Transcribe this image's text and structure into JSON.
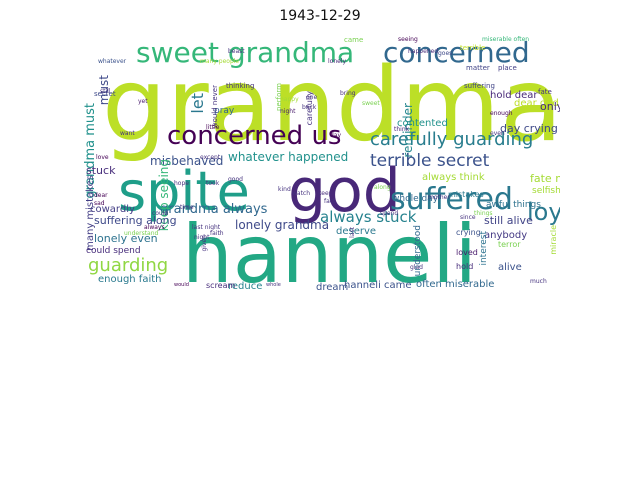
{
  "chart_data": {
    "type": "wordcloud",
    "title": "1943-12-29",
    "words": [
      {
        "text": "grandma",
        "color": "#bcdf27"
      },
      {
        "text": "hanneli",
        "color": "#22a884"
      },
      {
        "text": "god",
        "color": "#482878"
      },
      {
        "text": "spite",
        "color": "#1f9e89"
      },
      {
        "text": "sweet grandma",
        "color": "#35b779"
      },
      {
        "text": "concerned",
        "color": "#31688e"
      },
      {
        "text": "concerned us",
        "color": "#440154"
      },
      {
        "text": "suffered",
        "color": "#2a788e"
      },
      {
        "text": "carefully guarding",
        "color": "#287d8e"
      },
      {
        "text": "terrible secret",
        "color": "#3b528b"
      },
      {
        "text": "always stuck",
        "color": "#26828e"
      },
      {
        "text": "loyal",
        "color": "#2a788e"
      },
      {
        "text": "guarding",
        "color": "#90d743"
      },
      {
        "text": "grandma always",
        "color": "#31688e"
      },
      {
        "text": "lonely grandma",
        "color": "#3e4989"
      },
      {
        "text": "whatever happened",
        "color": "#21918c"
      },
      {
        "text": "misbehaved",
        "color": "#3b528b"
      },
      {
        "text": "keep seeing",
        "color": "#35b779"
      },
      {
        "text": "let",
        "color": "#2a788e"
      },
      {
        "text": "grandma must",
        "color": "#21918c"
      },
      {
        "text": "stuck",
        "color": "#472d7b"
      },
      {
        "text": "reminder",
        "color": "#24868e"
      },
      {
        "text": "hold dear",
        "color": "#482878"
      },
      {
        "text": "dear god",
        "color": "#bddf26"
      },
      {
        "text": "only",
        "color": "#472d7b"
      },
      {
        "text": "day crying",
        "color": "#3e4989"
      },
      {
        "text": "fate might",
        "color": "#a5db36"
      },
      {
        "text": "always think",
        "color": "#a5db36"
      },
      {
        "text": "contented",
        "color": "#21918c"
      },
      {
        "text": "many mistakes",
        "color": "#433e85"
      },
      {
        "text": "still alive",
        "color": "#414487"
      },
      {
        "text": "suffering along",
        "color": "#3e4989"
      },
      {
        "text": "lonely even",
        "color": "#2c728e"
      },
      {
        "text": "deserve",
        "color": "#2a788e"
      },
      {
        "text": "anybody",
        "color": "#443983"
      },
      {
        "text": "enough faith",
        "color": "#29798e"
      },
      {
        "text": "reduce",
        "color": "#26828e"
      },
      {
        "text": "dream",
        "color": "#3b528b"
      },
      {
        "text": "hanneli came",
        "color": "#3b528b"
      },
      {
        "text": "often miserable",
        "color": "#31688e"
      },
      {
        "text": "alive",
        "color": "#3b528b"
      },
      {
        "text": "cowardly",
        "color": "#433e85"
      },
      {
        "text": "whole day",
        "color": "#31688e"
      },
      {
        "text": "scream",
        "color": "#472d7b"
      },
      {
        "text": "understood",
        "color": "#31688e"
      },
      {
        "text": "loved",
        "color": "#481a6c"
      },
      {
        "text": "hold",
        "color": "#472d7b"
      },
      {
        "text": "crying",
        "color": "#3b528b"
      },
      {
        "text": "selfish",
        "color": "#a5db36"
      },
      {
        "text": "awful things",
        "color": "#2c728e"
      },
      {
        "text": "mistakes",
        "color": "#2a788e"
      },
      {
        "text": "pray",
        "color": "#32648e"
      },
      {
        "text": "could spend",
        "color": "#472d7b"
      },
      {
        "text": "interest",
        "color": "#2c728e"
      },
      {
        "text": "terror",
        "color": "#7ad151"
      },
      {
        "text": "miracle",
        "color": "#a5db36"
      },
      {
        "text": "secret",
        "color": "#3e4989"
      },
      {
        "text": "seeing",
        "color": "#440154"
      },
      {
        "text": "terrible",
        "color": "#c2df23"
      },
      {
        "text": "miserable often",
        "color": "#35b779"
      },
      {
        "text": "must",
        "color": "#3e4989"
      },
      {
        "text": "whatever",
        "color": "#3b528b"
      },
      {
        "text": "lonely",
        "color": "#482878"
      },
      {
        "text": "happened",
        "color": "#472d7b"
      },
      {
        "text": "goes",
        "color": "#3e4989"
      },
      {
        "text": "matter",
        "color": "#414487"
      },
      {
        "text": "place",
        "color": "#433e85"
      },
      {
        "text": "came",
        "color": "#7ad151"
      },
      {
        "text": "beast",
        "color": "#46337f"
      },
      {
        "text": "many people",
        "color": "#a5db36"
      },
      {
        "text": "would never",
        "color": "#46337f"
      },
      {
        "text": "thinking",
        "color": "#46337f"
      },
      {
        "text": "perform",
        "color": "#7ad151"
      },
      {
        "text": "suffering",
        "color": "#414487"
      },
      {
        "text": "carefully",
        "color": "#46337f"
      },
      {
        "text": "night",
        "color": "#481a6c"
      },
      {
        "text": "back",
        "color": "#46337f"
      },
      {
        "text": "still",
        "color": "#46337f"
      },
      {
        "text": "yet",
        "color": "#481a6c"
      },
      {
        "text": "want",
        "color": "#46337f"
      },
      {
        "text": "little",
        "color": "#440154"
      },
      {
        "text": "except",
        "color": "#46337f"
      },
      {
        "text": "bring",
        "color": "#472d7b"
      },
      {
        "text": "sweet",
        "color": "#7ad151"
      },
      {
        "text": "happy",
        "color": "#a5db36"
      },
      {
        "text": "one",
        "color": "#46337f"
      },
      {
        "text": "think",
        "color": "#482878"
      },
      {
        "text": "even",
        "color": "#46337f"
      },
      {
        "text": "fate",
        "color": "#46337f"
      },
      {
        "text": "enough",
        "color": "#440154"
      },
      {
        "text": "day",
        "color": "#440154"
      },
      {
        "text": "keep",
        "color": "#472d7b"
      },
      {
        "text": "watch",
        "color": "#46337f"
      },
      {
        "text": "fact",
        "color": "#46337f"
      },
      {
        "text": "love",
        "color": "#440154"
      },
      {
        "text": "dear",
        "color": "#440154"
      },
      {
        "text": "sad",
        "color": "#440154"
      },
      {
        "text": "hope",
        "color": "#46337f"
      },
      {
        "text": "took",
        "color": "#46337f"
      },
      {
        "text": "good",
        "color": "#46337f"
      },
      {
        "text": "kind",
        "color": "#46337f"
      },
      {
        "text": "along",
        "color": "#7ad151"
      },
      {
        "text": "mother",
        "color": "#46337f"
      },
      {
        "text": "things",
        "color": "#7ad151"
      },
      {
        "text": "time",
        "color": "#46337f"
      },
      {
        "text": "could",
        "color": "#46337f"
      },
      {
        "text": "always",
        "color": "#440154"
      },
      {
        "text": "understand",
        "color": "#7ad151"
      },
      {
        "text": "last night",
        "color": "#46337f"
      },
      {
        "text": "night",
        "color": "#46337f"
      },
      {
        "text": "given",
        "color": "#46337f"
      },
      {
        "text": "last",
        "color": "#46337f"
      },
      {
        "text": "would",
        "color": "#440154"
      },
      {
        "text": "whole",
        "color": "#46337f"
      },
      {
        "text": "spend",
        "color": "#46337f"
      },
      {
        "text": "since",
        "color": "#46337f"
      },
      {
        "text": "glad",
        "color": "#46337f"
      },
      {
        "text": "much",
        "color": "#46337f"
      },
      {
        "text": "faith",
        "color": "#46337f"
      },
      {
        "text": "hope",
        "color": "#46337f"
      }
    ]
  }
}
